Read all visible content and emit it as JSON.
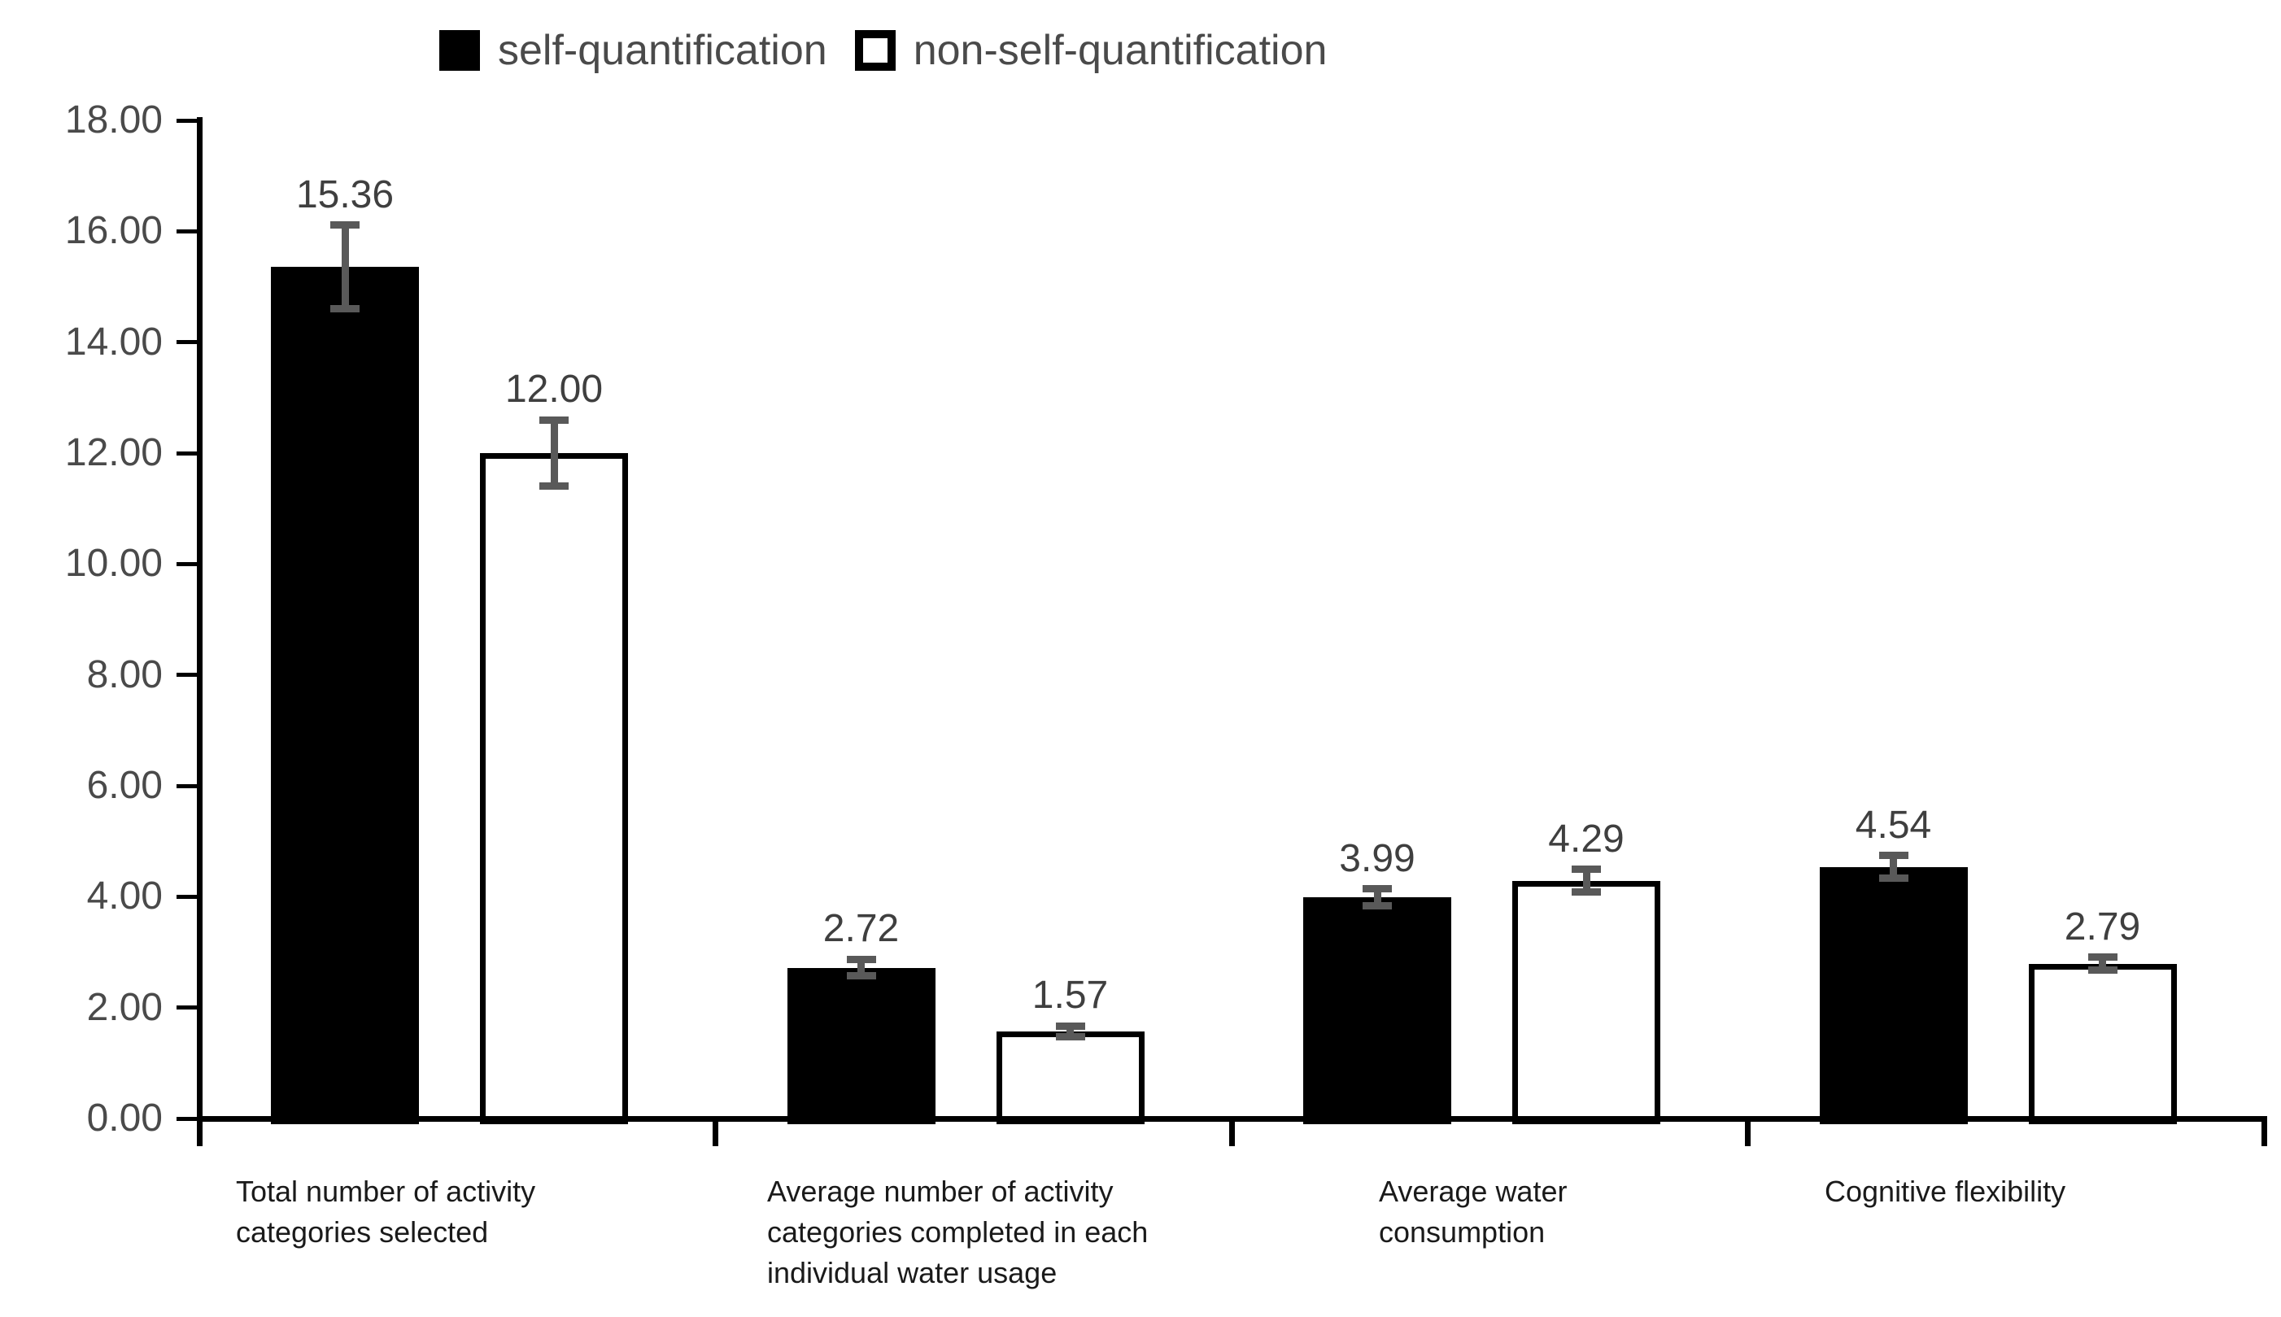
{
  "chart_data": {
    "type": "bar",
    "title": "",
    "xlabel": "",
    "ylabel": "",
    "ylim": [
      0,
      18
    ],
    "ytick_step": 2,
    "y_tick_labels": [
      "0.00",
      "2.00",
      "4.00",
      "6.00",
      "8.00",
      "10.00",
      "12.00",
      "14.00",
      "16.00",
      "18.00"
    ],
    "grid": false,
    "legend_position": "top-center",
    "categories": [
      "Total number of activity categories selected",
      "Average number of activity categories completed in each individual water usage",
      "Average water consumption",
      "Cognitive flexibility"
    ],
    "category_label_lines": [
      [
        "Total number of activity",
        "categories selected"
      ],
      [
        "Average number of activity",
        "categories completed in each",
        "individual water usage"
      ],
      [
        "Average water",
        "consumption"
      ],
      [
        "Cognitive flexibility"
      ]
    ],
    "series": [
      {
        "name": "self-quantification",
        "swatch": "black-filled-square",
        "fill": "#000000",
        "values": [
          15.36,
          2.72,
          3.99,
          4.54
        ],
        "value_labels": [
          "15.36",
          "2.72",
          "3.99",
          "4.54"
        ],
        "errors": [
          0.75,
          0.15,
          0.15,
          0.2
        ]
      },
      {
        "name": "non-self-quantification",
        "swatch": "white-outlined-square",
        "fill": "#ffffff",
        "values": [
          12.0,
          1.57,
          4.29,
          2.79
        ],
        "value_labels": [
          "12.00",
          "1.57",
          "4.29",
          "2.79"
        ],
        "errors": [
          0.6,
          0.1,
          0.2,
          0.12
        ]
      }
    ],
    "colors": {
      "bar_black": "#000000",
      "bar_white_fill": "#ffffff",
      "bar_outline": "#000000",
      "error_bar": "#595959",
      "axis": "#000000",
      "value_label_text": "#3f3f3f",
      "tick_label_text": "#4a4a4a",
      "category_label_text": "#1a1a1a",
      "legend_text": "#4a4a4a"
    }
  }
}
